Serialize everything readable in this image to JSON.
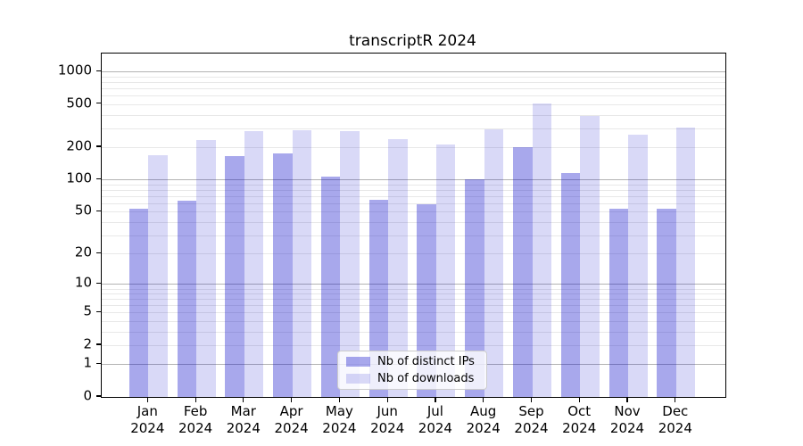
{
  "title": "transcriptR 2024",
  "legend": {
    "items": [
      {
        "label": "Nb of distinct IPs",
        "color": "rgba(0,0,200,0.34)"
      },
      {
        "label": "Nb of downloads",
        "color": "rgba(0,0,200,0.15)"
      }
    ]
  },
  "chart_data": {
    "type": "bar",
    "title": "transcriptR 2024",
    "categories": [
      "Jan 2024",
      "Feb 2024",
      "Mar 2024",
      "Apr 2024",
      "May 2024",
      "Jun 2024",
      "Jul 2024",
      "Aug 2024",
      "Sep 2024",
      "Oct 2024",
      "Nov 2024",
      "Dec 2024"
    ],
    "series": [
      {
        "name": "Nb of distinct IPs",
        "color": "rgba(0,0,200,0.34)",
        "values": [
          54,
          64,
          165,
          177,
          106,
          65,
          59,
          100,
          200,
          115,
          53,
          54
        ]
      },
      {
        "name": "Nb of downloads",
        "color": "rgba(0,0,200,0.15)",
        "values": [
          170,
          232,
          283,
          290,
          283,
          237,
          213,
          292,
          507,
          390,
          262,
          305
        ]
      }
    ],
    "xlabel": "",
    "ylabel": "",
    "yscale": "log1p",
    "yticks": [
      0,
      1,
      2,
      5,
      10,
      20,
      50,
      100,
      200,
      500,
      1000
    ],
    "ylim": [
      0,
      1470
    ],
    "grid": "horizontal, minor log gridlines light gray, powers of ten darker",
    "legend_position": "inside lower center",
    "colors": {
      "grid_minor": "#e8e8e8",
      "grid_major": "#b3b3b3",
      "axis": "#000000",
      "background": "#ffffff"
    }
  }
}
